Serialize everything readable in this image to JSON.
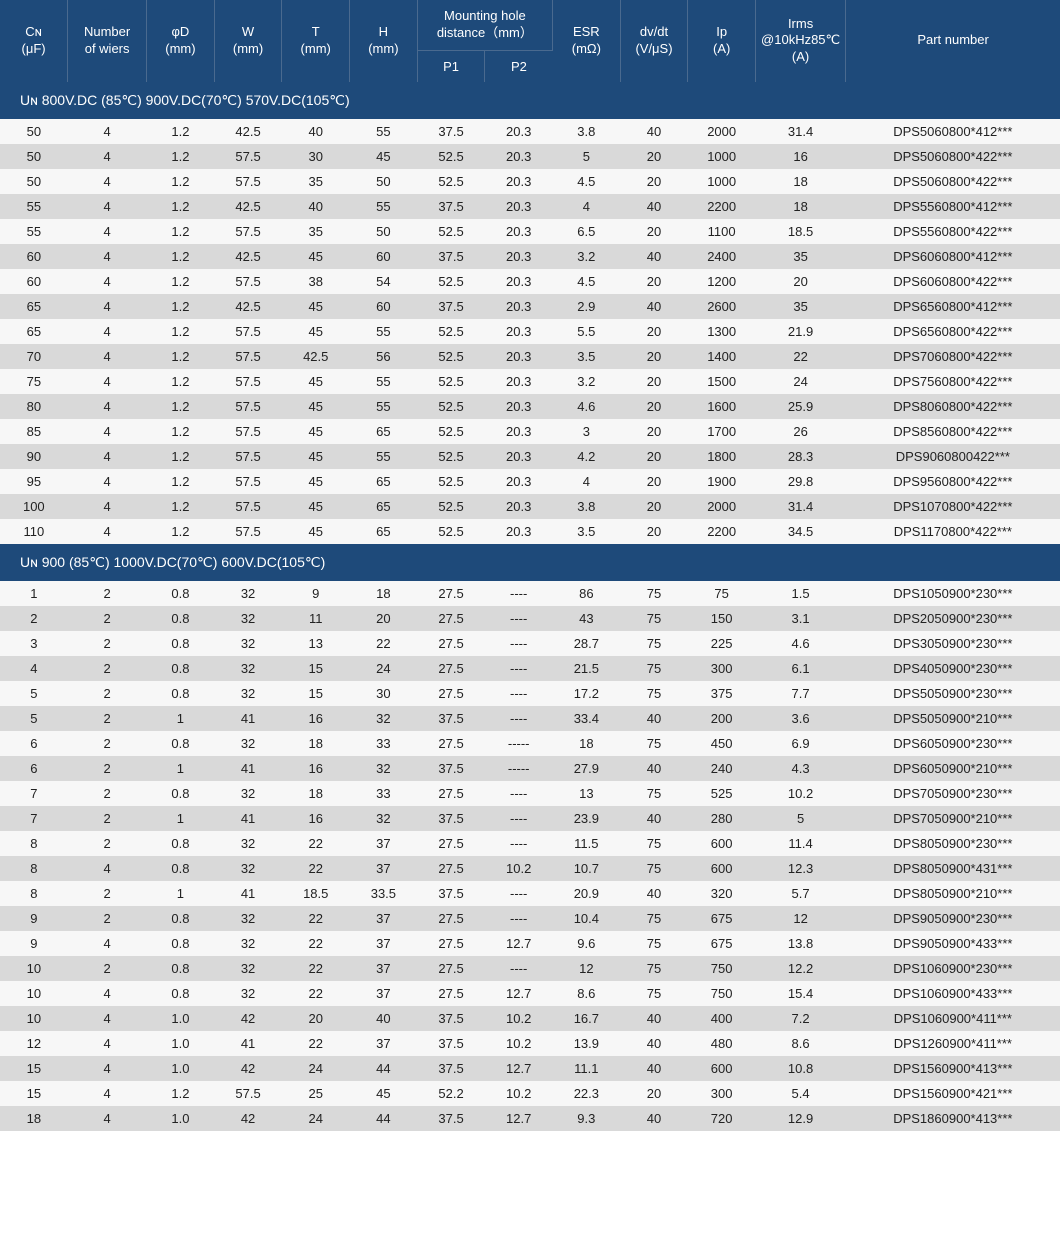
{
  "colors": {
    "header_bg": "#1e4a7a",
    "header_text": "#ffffff",
    "row_odd": "#f7f7f7",
    "row_even": "#d9d9d9",
    "text": "#222222",
    "header_border": "#4a6a8f"
  },
  "col_widths": [
    "60",
    "70",
    "60",
    "60",
    "60",
    "60",
    "60",
    "60",
    "60",
    "60",
    "60",
    "80",
    "190"
  ],
  "headers": {
    "cn": "Cɴ\n(μF)",
    "wiers": "Number\nof wiers",
    "phid": "φD\n(mm)",
    "w": "W\n(mm)",
    "t": "T\n(mm)",
    "h": "H\n(mm)",
    "mounting": "Mounting hole\ndistance（mm）",
    "p1": "P1",
    "p2": "P2",
    "esr": "ESR\n(mΩ)",
    "dvdt": "dv/dt\n(V/μS)",
    "ip": "Ip\n(A)",
    "irms": "Irms\n@10kHz85℃\n(A)",
    "part": "Part number"
  },
  "sections": [
    {
      "title": "Uɴ 800V.DC (85℃)   900V.DC(70℃)   570V.DC(105℃)",
      "rows": [
        [
          "50",
          "4",
          "1.2",
          "42.5",
          "40",
          "55",
          "37.5",
          "20.3",
          "3.8",
          "40",
          "2000",
          "31.4",
          "DPS5060800*412***"
        ],
        [
          "50",
          "4",
          "1.2",
          "57.5",
          "30",
          "45",
          "52.5",
          "20.3",
          "5",
          "20",
          "1000",
          "16",
          "DPS5060800*422***"
        ],
        [
          "50",
          "4",
          "1.2",
          "57.5",
          "35",
          "50",
          "52.5",
          "20.3",
          "4.5",
          "20",
          "1000",
          "18",
          "DPS5060800*422***"
        ],
        [
          "55",
          "4",
          "1.2",
          "42.5",
          "40",
          "55",
          "37.5",
          "20.3",
          "4",
          "40",
          "2200",
          "18",
          "DPS5560800*412***"
        ],
        [
          "55",
          "4",
          "1.2",
          "57.5",
          "35",
          "50",
          "52.5",
          "20.3",
          "6.5",
          "20",
          "1100",
          "18.5",
          "DPS5560800*422***"
        ],
        [
          "60",
          "4",
          "1.2",
          "42.5",
          "45",
          "60",
          "37.5",
          "20.3",
          "3.2",
          "40",
          "2400",
          "35",
          "DPS6060800*412***"
        ],
        [
          "60",
          "4",
          "1.2",
          "57.5",
          "38",
          "54",
          "52.5",
          "20.3",
          "4.5",
          "20",
          "1200",
          "20",
          "DPS6060800*422***"
        ],
        [
          "65",
          "4",
          "1.2",
          "42.5",
          "45",
          "60",
          "37.5",
          "20.3",
          "2.9",
          "40",
          "2600",
          "35",
          "DPS6560800*412***"
        ],
        [
          "65",
          "4",
          "1.2",
          "57.5",
          "45",
          "55",
          "52.5",
          "20.3",
          "5.5",
          "20",
          "1300",
          "21.9",
          "DPS6560800*422***"
        ],
        [
          "70",
          "4",
          "1.2",
          "57.5",
          "42.5",
          "56",
          "52.5",
          "20.3",
          "3.5",
          "20",
          "1400",
          "22",
          "DPS7060800*422***"
        ],
        [
          "75",
          "4",
          "1.2",
          "57.5",
          "45",
          "55",
          "52.5",
          "20.3",
          "3.2",
          "20",
          "1500",
          "24",
          "DPS7560800*422***"
        ],
        [
          "80",
          "4",
          "1.2",
          "57.5",
          "45",
          "55",
          "52.5",
          "20.3",
          "4.6",
          "20",
          "1600",
          "25.9",
          "DPS8060800*422***"
        ],
        [
          "85",
          "4",
          "1.2",
          "57.5",
          "45",
          "65",
          "52.5",
          "20.3",
          "3",
          "20",
          "1700",
          "26",
          "DPS8560800*422***"
        ],
        [
          "90",
          "4",
          "1.2",
          "57.5",
          "45",
          "55",
          "52.5",
          "20.3",
          "4.2",
          "20",
          "1800",
          "28.3",
          "DPS9060800422***"
        ],
        [
          "95",
          "4",
          "1.2",
          "57.5",
          "45",
          "65",
          "52.5",
          "20.3",
          "4",
          "20",
          "1900",
          "29.8",
          "DPS9560800*422***"
        ],
        [
          "100",
          "4",
          "1.2",
          "57.5",
          "45",
          "65",
          "52.5",
          "20.3",
          "3.8",
          "20",
          "2000",
          "31.4",
          "DPS1070800*422***"
        ],
        [
          "110",
          "4",
          "1.2",
          "57.5",
          "45",
          "65",
          "52.5",
          "20.3",
          "3.5",
          "20",
          "2200",
          "34.5",
          "DPS1170800*422***"
        ]
      ]
    },
    {
      "title": "Uɴ 900 (85℃)   1000V.DC(70℃)   600V.DC(105℃)",
      "rows": [
        [
          "1",
          "2",
          "0.8",
          "32",
          "9",
          "18",
          "27.5",
          "----",
          "86",
          "75",
          "75",
          "1.5",
          "DPS1050900*230***"
        ],
        [
          "2",
          "2",
          "0.8",
          "32",
          "11",
          "20",
          "27.5",
          "----",
          "43",
          "75",
          "150",
          "3.1",
          "DPS2050900*230***"
        ],
        [
          "3",
          "2",
          "0.8",
          "32",
          "13",
          "22",
          "27.5",
          "----",
          "28.7",
          "75",
          "225",
          "4.6",
          "DPS3050900*230***"
        ],
        [
          "4",
          "2",
          "0.8",
          "32",
          "15",
          "24",
          "27.5",
          "----",
          "21.5",
          "75",
          "300",
          "6.1",
          "DPS4050900*230***"
        ],
        [
          "5",
          "2",
          "0.8",
          "32",
          "15",
          "30",
          "27.5",
          "----",
          "17.2",
          "75",
          "375",
          "7.7",
          "DPS5050900*230***"
        ],
        [
          "5",
          "2",
          "1",
          "41",
          "16",
          "32",
          "37.5",
          "----",
          "33.4",
          "40",
          "200",
          "3.6",
          "DPS5050900*210***"
        ],
        [
          "6",
          "2",
          "0.8",
          "32",
          "18",
          "33",
          "27.5",
          "-----",
          "18",
          "75",
          "450",
          "6.9",
          "DPS6050900*230***"
        ],
        [
          "6",
          "2",
          "1",
          "41",
          "16",
          "32",
          "37.5",
          "-----",
          "27.9",
          "40",
          "240",
          "4.3",
          "DPS6050900*210***"
        ],
        [
          "7",
          "2",
          "0.8",
          "32",
          "18",
          "33",
          "27.5",
          "----",
          "13",
          "75",
          "525",
          "10.2",
          "DPS7050900*230***"
        ],
        [
          "7",
          "2",
          "1",
          "41",
          "16",
          "32",
          "37.5",
          "----",
          "23.9",
          "40",
          "280",
          "5",
          "DPS7050900*210***"
        ],
        [
          "8",
          "2",
          "0.8",
          "32",
          "22",
          "37",
          "27.5",
          "----",
          "11.5",
          "75",
          "600",
          "11.4",
          "DPS8050900*230***"
        ],
        [
          "8",
          "4",
          "0.8",
          "32",
          "22",
          "37",
          "27.5",
          "10.2",
          "10.7",
          "75",
          "600",
          "12.3",
          "DPS8050900*431***"
        ],
        [
          "8",
          "2",
          "1",
          "41",
          "18.5",
          "33.5",
          "37.5",
          "----",
          "20.9",
          "40",
          "320",
          "5.7",
          "DPS8050900*210***"
        ],
        [
          "9",
          "2",
          "0.8",
          "32",
          "22",
          "37",
          "27.5",
          "----",
          "10.4",
          "75",
          "675",
          "12",
          "DPS9050900*230***"
        ],
        [
          "9",
          "4",
          "0.8",
          "32",
          "22",
          "37",
          "27.5",
          "12.7",
          "9.6",
          "75",
          "675",
          "13.8",
          "DPS9050900*433***"
        ],
        [
          "10",
          "2",
          "0.8",
          "32",
          "22",
          "37",
          "27.5",
          "----",
          "12",
          "75",
          "750",
          "12.2",
          "DPS1060900*230***"
        ],
        [
          "10",
          "4",
          "0.8",
          "32",
          "22",
          "37",
          "27.5",
          "12.7",
          "8.6",
          "75",
          "750",
          "15.4",
          "DPS1060900*433***"
        ],
        [
          "10",
          "4",
          "1.0",
          "42",
          "20",
          "40",
          "37.5",
          "10.2",
          "16.7",
          "40",
          "400",
          "7.2",
          "DPS1060900*411***"
        ],
        [
          "12",
          "4",
          "1.0",
          "41",
          "22",
          "37",
          "37.5",
          "10.2",
          "13.9",
          "40",
          "480",
          "8.6",
          "DPS1260900*411***"
        ],
        [
          "15",
          "4",
          "1.0",
          "42",
          "24",
          "44",
          "37.5",
          "12.7",
          "11.1",
          "40",
          "600",
          "10.8",
          "DPS1560900*413***"
        ],
        [
          "15",
          "4",
          "1.2",
          "57.5",
          "25",
          "45",
          "52.2",
          "10.2",
          "22.3",
          "20",
          "300",
          "5.4",
          "DPS1560900*421***"
        ],
        [
          "18",
          "4",
          "1.0",
          "42",
          "24",
          "44",
          "37.5",
          "12.7",
          "9.3",
          "40",
          "720",
          "12.9",
          "DPS1860900*413***"
        ]
      ]
    }
  ]
}
